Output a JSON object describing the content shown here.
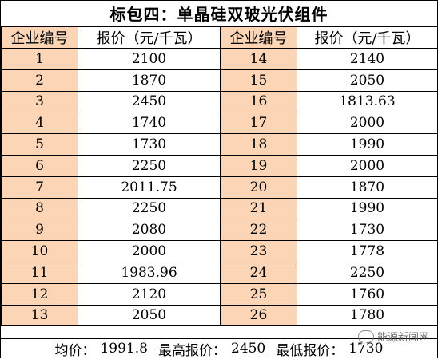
{
  "title": "标包四：单晶硅双玻光伏组件",
  "headers": {
    "id": "企业编号",
    "price": "报价（元/千瓦）"
  },
  "left_rows": [
    {
      "id": "1",
      "price": "2100"
    },
    {
      "id": "2",
      "price": "1870"
    },
    {
      "id": "3",
      "price": "2450"
    },
    {
      "id": "4",
      "price": "1740"
    },
    {
      "id": "5",
      "price": "1730"
    },
    {
      "id": "6",
      "price": "2250"
    },
    {
      "id": "7",
      "price": "2011.75"
    },
    {
      "id": "8",
      "price": "2250"
    },
    {
      "id": "9",
      "price": "2080"
    },
    {
      "id": "10",
      "price": "2000"
    },
    {
      "id": "11",
      "price": "1983.96"
    },
    {
      "id": "12",
      "price": "2120"
    },
    {
      "id": "13",
      "price": "2050"
    }
  ],
  "right_rows": [
    {
      "id": "14",
      "price": "2140"
    },
    {
      "id": "15",
      "price": "2050"
    },
    {
      "id": "16",
      "price": "1813.63"
    },
    {
      "id": "17",
      "price": "2000"
    },
    {
      "id": "18",
      "price": "1990"
    },
    {
      "id": "19",
      "price": "2000"
    },
    {
      "id": "20",
      "price": "1870"
    },
    {
      "id": "21",
      "price": "1990"
    },
    {
      "id": "22",
      "price": "1730"
    },
    {
      "id": "23",
      "price": "1778"
    },
    {
      "id": "24",
      "price": "2250"
    },
    {
      "id": "25",
      "price": "1760"
    },
    {
      "id": "26",
      "price": "1780"
    }
  ],
  "footer": {
    "avg_label": "均价：",
    "avg_value": "1991.8",
    "max_label": "最高报价：",
    "max_value": "2450",
    "min_label": "最低报价：",
    "min_value": "1730"
  },
  "watermark": {
    "icon": "chat-bubble-icon",
    "text": "能源新闻网"
  },
  "colors": {
    "id_cell_bg": "#fbd5b5",
    "price_cell_bg": "#ffffff",
    "border": "#000000"
  }
}
